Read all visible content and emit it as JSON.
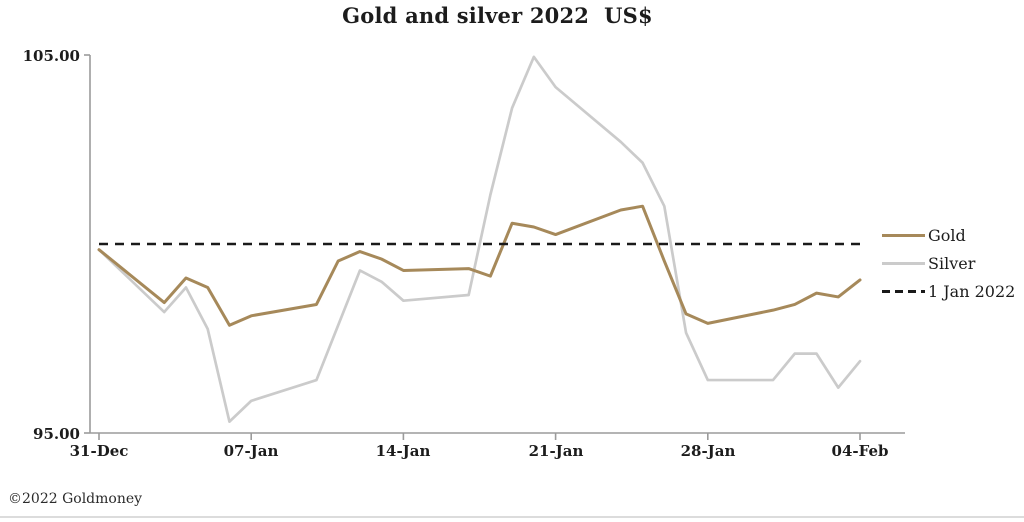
{
  "title": "Gold and silver 2022  US$",
  "footer": "©2022 Goldmoney",
  "colors": {
    "gold": "#a6895a",
    "silver": "#cbcbcb",
    "baseline": "#1a1a1a",
    "axis": "#9b9b9b",
    "text": "#1c1c1c",
    "bottom_rule": "#dcdcdc",
    "background": "#ffffff"
  },
  "y_axis": {
    "max_label": "105.00",
    "min_label": "95.00"
  },
  "x_axis": {
    "tick_day_offsets": [
      0,
      7,
      14,
      21,
      28,
      35
    ]
  },
  "legend": {
    "items": [
      {
        "label": "Gold"
      },
      {
        "label": "Silver"
      },
      {
        "label": "1 Jan 2022"
      }
    ]
  },
  "chart_data": {
    "type": "line",
    "title": "Gold and silver 2022  US$",
    "ylabel": "",
    "xlabel": "",
    "ylim": [
      95,
      105
    ],
    "yticks": [
      95,
      105
    ],
    "ytick_labels": [
      "95.00",
      "105.00"
    ],
    "x_tick_labels": [
      "31-Dec",
      "07-Jan",
      "14-Jan",
      "21-Jan",
      "28-Jan",
      "04-Feb"
    ],
    "grid": false,
    "legend_position": "right",
    "baseline": {
      "label": "1 Jan 2022",
      "value": 100,
      "style": "dashed",
      "color": "#1a1a1a"
    },
    "dates": [
      "31-Dec",
      "03-Jan",
      "04-Jan",
      "05-Jan",
      "06-Jan",
      "07-Jan",
      "10-Jan",
      "11-Jan",
      "12-Jan",
      "13-Jan",
      "14-Jan",
      "17-Jan",
      "18-Jan",
      "19-Jan",
      "20-Jan",
      "21-Jan",
      "24-Jan",
      "25-Jan",
      "26-Jan",
      "27-Jan",
      "28-Jan",
      "31-Jan",
      "01-Feb",
      "02-Feb",
      "03-Feb",
      "04-Feb"
    ],
    "day_offsets": [
      0,
      3,
      4,
      5,
      6,
      7,
      10,
      11,
      12,
      13,
      14,
      17,
      18,
      19,
      20,
      21,
      24,
      25,
      26,
      27,
      28,
      31,
      32,
      33,
      34,
      35
    ],
    "series": [
      {
        "name": "Gold",
        "color": "#a6895a",
        "values": [
          99.85,
          98.45,
          99.1,
          98.85,
          97.85,
          98.1,
          98.4,
          99.55,
          99.8,
          99.6,
          99.3,
          99.35,
          99.15,
          100.55,
          100.45,
          100.25,
          100.9,
          101.0,
          99.55,
          98.15,
          97.9,
          98.25,
          98.4,
          98.7,
          98.6,
          99.05
        ]
      },
      {
        "name": "Silver",
        "color": "#cbcbcb",
        "values": [
          99.85,
          98.2,
          98.85,
          97.75,
          95.3,
          95.85,
          96.4,
          97.85,
          99.3,
          99.0,
          98.5,
          98.65,
          101.3,
          103.6,
          104.95,
          104.15,
          102.7,
          102.15,
          101.0,
          97.65,
          96.4,
          96.4,
          97.1,
          97.1,
          96.2,
          96.9
        ]
      }
    ]
  }
}
